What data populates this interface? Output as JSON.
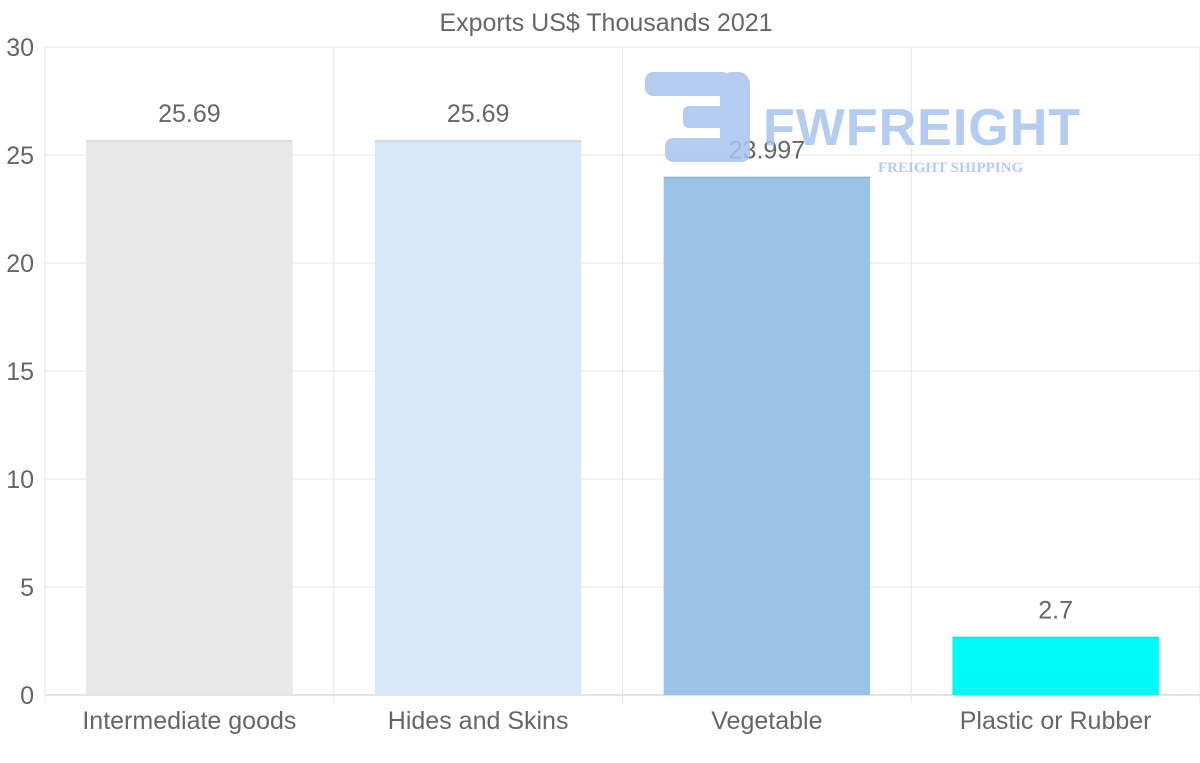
{
  "chart_data": {
    "type": "bar",
    "title": "Exports US$ Thousands 2021",
    "categories": [
      "Intermediate goods",
      "Hides and Skins",
      "Vegetable",
      "Plastic or Rubber"
    ],
    "values": [
      25.69,
      25.69,
      23.997,
      2.7
    ],
    "value_labels": [
      "25.69",
      "25.69",
      "23.997",
      "2.7"
    ],
    "bar_colors": [
      "#e8e8e8",
      "#d6e8f8",
      "#9bc3e8",
      "#00f9f9"
    ],
    "ylim": [
      0,
      30
    ],
    "yticks": [
      0,
      5,
      10,
      15,
      20,
      25,
      30
    ],
    "xlabel": "",
    "ylabel": "",
    "grid": true
  },
  "watermark": {
    "brand": "FWFREIGHT",
    "tagline": "FREIGHT SHIPPING",
    "color": "#a9c4f0"
  }
}
